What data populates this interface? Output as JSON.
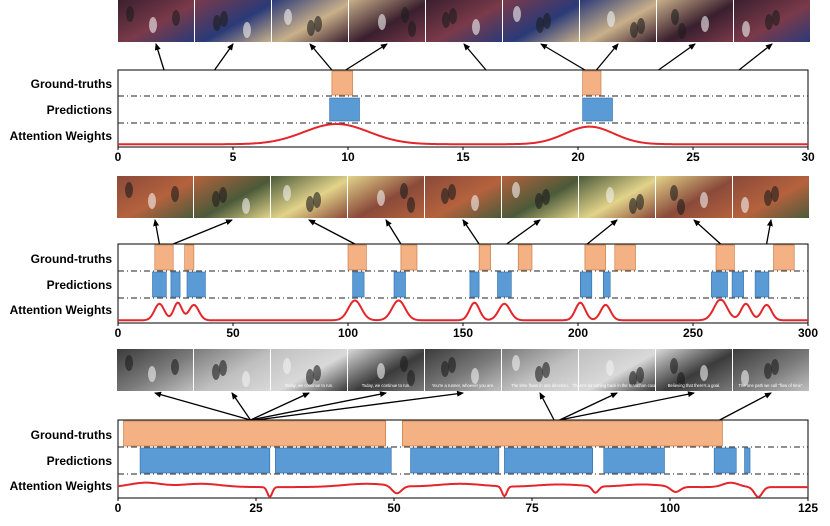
{
  "colors": {
    "ground_truth": "#f4b183",
    "ground_truth_edge": "#c5703a",
    "prediction": "#5b9bd5",
    "prediction_edge": "#2e6ca8",
    "attention": "#e3262b",
    "dashline": "#222222"
  },
  "row_labels": {
    "ground_truths": "Ground-truths",
    "predictions": "Predictions",
    "attention": "Attention Weights"
  },
  "panels": [
    {
      "name": "basketball",
      "x_range": [
        0,
        30
      ],
      "ticks": [
        "0",
        "5",
        "10",
        "15",
        "20",
        "25",
        "30"
      ],
      "tick_values": [
        0,
        5,
        10,
        15,
        20,
        25,
        30
      ],
      "thumbnails": [
        {
          "scene": "basketball",
          "caption": ""
        },
        {
          "scene": "basketball",
          "caption": ""
        },
        {
          "scene": "basketball",
          "caption": ""
        },
        {
          "scene": "basketball",
          "caption": ""
        },
        {
          "scene": "basketball",
          "caption": ""
        },
        {
          "scene": "basketball",
          "caption": ""
        },
        {
          "scene": "basketball",
          "caption": ""
        },
        {
          "scene": "basketball",
          "caption": ""
        },
        {
          "scene": "basketball",
          "caption": ""
        }
      ],
      "ground_truths": [
        [
          9.3,
          10.2
        ],
        [
          20.2,
          21.0
        ]
      ],
      "predictions": [
        [
          9.2,
          10.5
        ],
        [
          20.2,
          21.5
        ]
      ],
      "attention": {
        "base": 0.08,
        "peaks": [
          {
            "center": 9.5,
            "height": 0.92,
            "width": 2.0
          },
          {
            "center": 20.5,
            "height": 0.8,
            "width": 1.5
          }
        ]
      },
      "arrows": [
        [
          0,
          2.0
        ],
        [
          1,
          4.2
        ],
        [
          2,
          9.3
        ],
        [
          3,
          9.9
        ],
        [
          4,
          16.0
        ],
        [
          5,
          20.3
        ],
        [
          6,
          20.8
        ],
        [
          7,
          23.5
        ],
        [
          8,
          27.0
        ]
      ]
    },
    {
      "name": "athletics",
      "x_range": [
        0,
        300
      ],
      "ticks": [
        "0",
        "50",
        "100",
        "150",
        "200",
        "250",
        "300"
      ],
      "tick_values": [
        0,
        50,
        100,
        150,
        200,
        250,
        300
      ],
      "thumbnails": [
        {
          "scene": "track",
          "caption": ""
        },
        {
          "scene": "track",
          "caption": ""
        },
        {
          "scene": "track",
          "caption": ""
        },
        {
          "scene": "track",
          "caption": ""
        },
        {
          "scene": "track",
          "caption": ""
        },
        {
          "scene": "track",
          "caption": ""
        },
        {
          "scene": "track",
          "caption": ""
        },
        {
          "scene": "track",
          "caption": ""
        },
        {
          "scene": "track",
          "caption": ""
        }
      ],
      "ground_truths": [
        [
          16,
          24
        ],
        [
          29,
          33
        ],
        [
          100,
          108
        ],
        [
          123,
          130
        ],
        [
          157,
          162
        ],
        [
          174,
          180
        ],
        [
          203,
          212
        ],
        [
          216,
          225
        ],
        [
          260,
          268
        ],
        [
          285,
          294
        ]
      ],
      "predictions": [
        [
          15,
          21
        ],
        [
          23,
          27
        ],
        [
          30,
          38
        ],
        [
          102,
          107
        ],
        [
          120,
          125
        ],
        [
          153,
          157
        ],
        [
          165,
          171
        ],
        [
          201,
          206
        ],
        [
          211,
          214
        ],
        [
          258,
          265
        ],
        [
          267,
          272
        ],
        [
          277,
          283
        ]
      ],
      "attention": {
        "base": 0.08,
        "peaks": [
          {
            "center": 18,
            "height": 0.75,
            "width": 3
          },
          {
            "center": 26,
            "height": 0.8,
            "width": 2.5
          },
          {
            "center": 33,
            "height": 0.7,
            "width": 3
          },
          {
            "center": 103,
            "height": 0.9,
            "width": 4
          },
          {
            "center": 122,
            "height": 0.9,
            "width": 4
          },
          {
            "center": 155,
            "height": 0.8,
            "width": 3
          },
          {
            "center": 168,
            "height": 0.75,
            "width": 3.5
          },
          {
            "center": 201,
            "height": 0.8,
            "width": 3
          },
          {
            "center": 212,
            "height": 0.7,
            "width": 3
          },
          {
            "center": 262,
            "height": 0.95,
            "width": 4
          },
          {
            "center": 273,
            "height": 0.75,
            "width": 3
          },
          {
            "center": 282,
            "height": 0.7,
            "width": 3
          }
        ]
      },
      "arrows": [
        [
          0,
          18
        ],
        [
          1,
          24
        ],
        [
          2,
          103
        ],
        [
          3,
          123
        ],
        [
          4,
          157
        ],
        [
          5,
          169
        ],
        [
          6,
          204
        ],
        [
          7,
          262
        ],
        [
          8,
          282
        ]
      ]
    },
    {
      "name": "marathon",
      "x_range": [
        0,
        125
      ],
      "ticks": [
        "0",
        "25",
        "50",
        "75",
        "100",
        "125"
      ],
      "tick_values": [
        0,
        25,
        50,
        75,
        100,
        125
      ],
      "thumbnails": [
        {
          "scene": "crowd",
          "caption": ""
        },
        {
          "scene": "crowd",
          "caption": ""
        },
        {
          "scene": "crowd",
          "caption": "Today, we continue to run."
        },
        {
          "scene": "crowd",
          "caption": "Today, we continue to run."
        },
        {
          "scene": "crowd",
          "caption": "You're a runner, whoever you are."
        },
        {
          "scene": "crowd",
          "caption": "The time flows in one direction."
        },
        {
          "scene": "crowd",
          "caption": "There's no turning back in the marathon course."
        },
        {
          "scene": "crowd",
          "caption": "Believing that there's a goal."
        },
        {
          "scene": "crowd",
          "caption": "The one path we call \"flow of time\"."
        }
      ],
      "ground_truths": [
        [
          1,
          48.5
        ],
        [
          51.5,
          109.5
        ]
      ],
      "predictions": [
        [
          4,
          27.5
        ],
        [
          28.5,
          49.5
        ],
        [
          53,
          69
        ],
        [
          70,
          86
        ],
        [
          88,
          99
        ],
        [
          108,
          112
        ],
        [
          113.5,
          114.5
        ]
      ],
      "attention": {
        "base": 0.45,
        "peaks": [
          {
            "center": 5,
            "height": 0.2,
            "width": 4
          },
          {
            "center": 15,
            "height": 0.15,
            "width": 5
          },
          {
            "center": 45,
            "height": 0.15,
            "width": 6
          },
          {
            "center": 62,
            "height": 0.15,
            "width": 6
          },
          {
            "center": 80,
            "height": 0.12,
            "width": 6
          },
          {
            "center": 95,
            "height": 0.12,
            "width": 5
          },
          {
            "center": 111,
            "height": 0.2,
            "width": 2
          }
        ],
        "dips": [
          {
            "center": 27.5,
            "depth": 0.45,
            "width": 0.6
          },
          {
            "center": 50.5,
            "depth": 0.35,
            "width": 1.2
          },
          {
            "center": 70,
            "depth": 0.45,
            "width": 0.6
          },
          {
            "center": 86.5,
            "depth": 0.3,
            "width": 0.8
          },
          {
            "center": 101,
            "depth": 0.25,
            "width": 1.2
          },
          {
            "center": 116,
            "depth": 0.45,
            "width": 1.0
          }
        ]
      },
      "arrows": [
        [
          0,
          24
        ],
        [
          1,
          24
        ],
        [
          2,
          24
        ],
        [
          3,
          24
        ],
        [
          4,
          25
        ],
        [
          5,
          79
        ],
        [
          6,
          80
        ],
        [
          7,
          80
        ],
        [
          8,
          109
        ]
      ]
    }
  ]
}
